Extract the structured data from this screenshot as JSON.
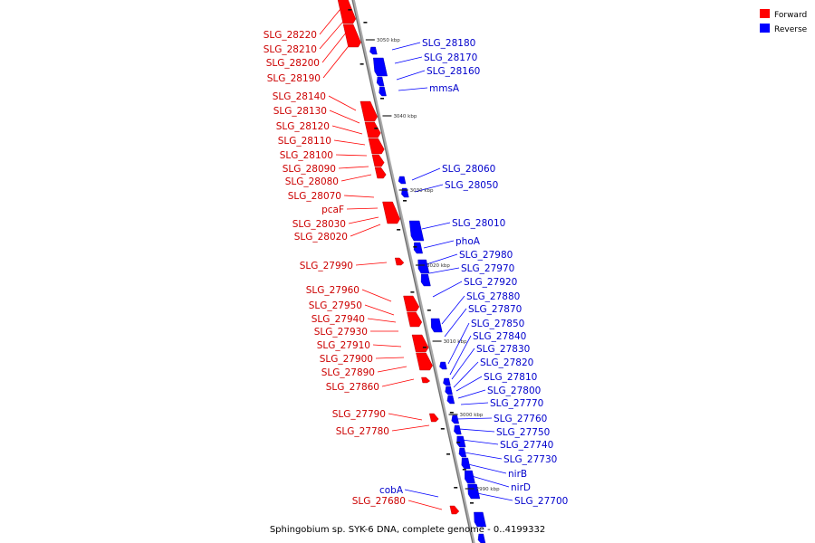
{
  "caption": "Sphingobium sp. SYK-6 DNA, complete genome - 0..4199332",
  "legend": [
    {
      "label": "Forward",
      "color": "#ff0000"
    },
    {
      "label": "Reverse",
      "color": "#0000ff"
    }
  ],
  "colors": {
    "forward": "#ff0000",
    "reverse": "#0000ff",
    "forward_label": "#cc0000",
    "reverse_label": "#0000cc",
    "axis": "#888888"
  },
  "ticks": [
    "3050 kbp",
    "3040 kbp",
    "3030 kbp",
    "3020 kbp",
    "3010 kbp",
    "3000 kbp",
    "2990 kbp"
  ],
  "forward_labels": [
    "SLG_28220",
    "SLG_28210",
    "SLG_28200",
    "SLG_28190",
    "SLG_28140",
    "SLG_28130",
    "SLG_28120",
    "SLG_28110",
    "SLG_28100",
    "SLG_28090",
    "SLG_28080",
    "SLG_28070",
    "pcaF",
    "SLG_28030",
    "SLG_28020",
    "SLG_27990",
    "SLG_27960",
    "SLG_27950",
    "SLG_27940",
    "SLG_27930",
    "SLG_27910",
    "SLG_27900",
    "SLG_27890",
    "SLG_27860",
    "SLG_27790",
    "SLG_27780",
    "SLG_27680"
  ],
  "reverse_labels": [
    "SLG_28180",
    "SLG_28170",
    "SLG_28160",
    "mmsA",
    "SLG_28060",
    "SLG_28050",
    "SLG_28010",
    "phoA",
    "SLG_27980",
    "SLG_27970",
    "SLG_27920",
    "SLG_27880",
    "SLG_27870",
    "SLG_27850",
    "SLG_27840",
    "SLG_27830",
    "SLG_27820",
    "SLG_27810",
    "SLG_27800",
    "SLG_27770",
    "SLG_27760",
    "SLG_27750",
    "SLG_27740",
    "SLG_27730",
    "nirB",
    "nirD",
    "SLG_27700",
    "cobA"
  ]
}
